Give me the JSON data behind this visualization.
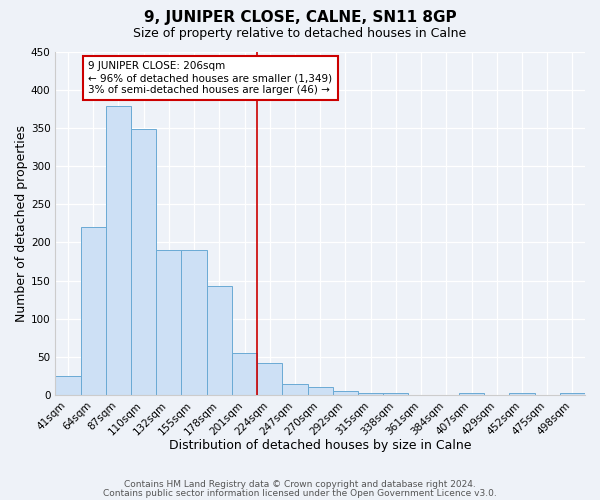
{
  "title": "9, JUNIPER CLOSE, CALNE, SN11 8GP",
  "subtitle": "Size of property relative to detached houses in Calne",
  "xlabel": "Distribution of detached houses by size in Calne",
  "ylabel": "Number of detached properties",
  "bar_labels": [
    "41sqm",
    "64sqm",
    "87sqm",
    "110sqm",
    "132sqm",
    "155sqm",
    "178sqm",
    "201sqm",
    "224sqm",
    "247sqm",
    "270sqm",
    "292sqm",
    "315sqm",
    "338sqm",
    "361sqm",
    "384sqm",
    "407sqm",
    "429sqm",
    "452sqm",
    "475sqm",
    "498sqm"
  ],
  "bar_values": [
    25,
    220,
    378,
    348,
    190,
    190,
    143,
    55,
    42,
    15,
    10,
    5,
    3,
    2,
    0,
    0,
    2,
    0,
    2,
    0,
    2
  ],
  "bar_color": "#cde0f5",
  "bar_edge_color": "#6aaad4",
  "vline_color": "#cc0000",
  "ylim": [
    0,
    450
  ],
  "yticks": [
    0,
    50,
    100,
    150,
    200,
    250,
    300,
    350,
    400,
    450
  ],
  "annotation_title": "9 JUNIPER CLOSE: 206sqm",
  "annotation_line1": "← 96% of detached houses are smaller (1,349)",
  "annotation_line2": "3% of semi-detached houses are larger (46) →",
  "annotation_box_color": "#cc0000",
  "footer_line1": "Contains HM Land Registry data © Crown copyright and database right 2024.",
  "footer_line2": "Contains public sector information licensed under the Open Government Licence v3.0.",
  "bg_color": "#eef2f8",
  "title_fontsize": 11,
  "subtitle_fontsize": 9,
  "axis_label_fontsize": 9,
  "tick_fontsize": 7.5,
  "footer_fontsize": 6.5,
  "annotation_fontsize": 7.5
}
